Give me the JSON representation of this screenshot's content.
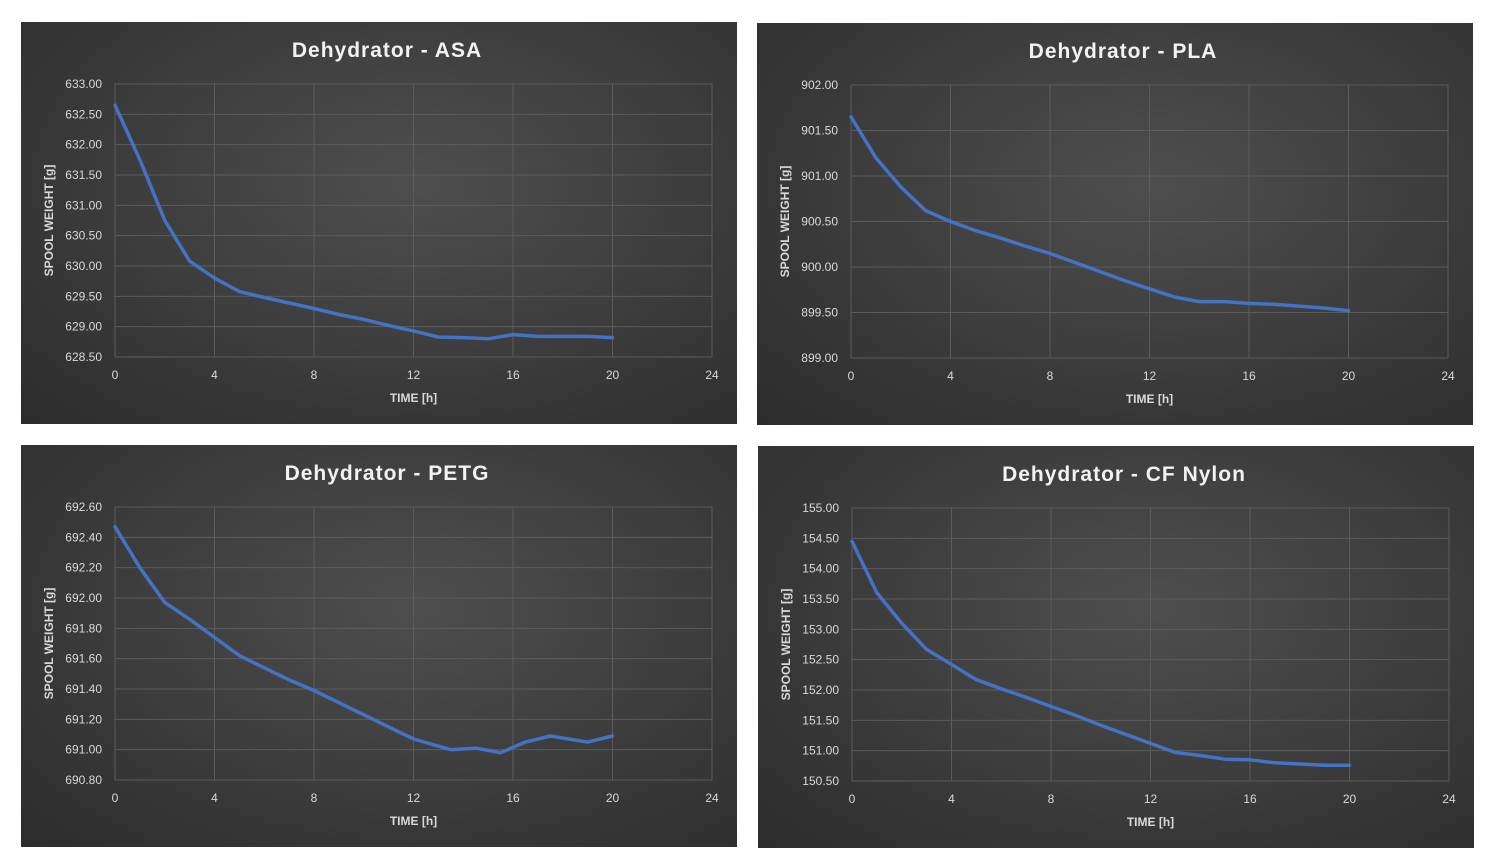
{
  "colors": {
    "series": "#4472c4",
    "panel_bg": "#3a3a3a",
    "text": "#d9d9d9"
  },
  "chart_data": [
    {
      "type": "line",
      "title": "Dehydrator - ASA",
      "xlabel": "TIME [h]",
      "ylabel": "SPOOL WEIGHT [g]",
      "xlim": [
        0,
        24
      ],
      "xticks": [
        "0",
        "4",
        "8",
        "12",
        "16",
        "20",
        "24"
      ],
      "ylim": [
        628.5,
        633.0
      ],
      "yticks": [
        "628.50",
        "629.00",
        "629.50",
        "630.00",
        "630.50",
        "631.00",
        "631.50",
        "632.00",
        "632.50",
        "633.00"
      ],
      "grid": true,
      "legend": "none",
      "series": [
        {
          "x": [
            0,
            1,
            2,
            3,
            4,
            5,
            6,
            7,
            8,
            9,
            10,
            11,
            12,
            13,
            14,
            15,
            16,
            17,
            18,
            19,
            20
          ],
          "y": [
            632.65,
            631.75,
            630.75,
            630.08,
            629.8,
            629.58,
            629.48,
            629.39,
            629.3,
            629.2,
            629.12,
            629.02,
            628.93,
            628.83,
            628.82,
            628.8,
            628.87,
            628.84,
            628.84,
            628.84,
            628.82
          ]
        }
      ]
    },
    {
      "type": "line",
      "title": "Dehydrator - PLA",
      "xlabel": "TIME [h]",
      "ylabel": "SPOOL WEIGHT [g]",
      "xlim": [
        0,
        24
      ],
      "xticks": [
        "0",
        "4",
        "8",
        "12",
        "16",
        "20",
        "24"
      ],
      "ylim": [
        899.0,
        902.0
      ],
      "yticks": [
        "899.00",
        "899.50",
        "900.00",
        "900.50",
        "901.00",
        "901.50",
        "902.00"
      ],
      "grid": true,
      "legend": "none",
      "series": [
        {
          "x": [
            0,
            1,
            2,
            3,
            4,
            5,
            6,
            7,
            8,
            9,
            10,
            11,
            12,
            13,
            14,
            15,
            16,
            17,
            18,
            19,
            20
          ],
          "y": [
            901.65,
            901.2,
            900.88,
            900.62,
            900.5,
            900.4,
            900.32,
            900.23,
            900.15,
            900.05,
            899.95,
            899.85,
            899.76,
            899.67,
            899.62,
            899.62,
            899.6,
            899.59,
            899.57,
            899.55,
            899.52
          ]
        }
      ]
    },
    {
      "type": "line",
      "title": "Dehydrator - PETG",
      "xlabel": "TIME [h]",
      "ylabel": "SPOOL WEIGHT [g]",
      "xlim": [
        0,
        24
      ],
      "xticks": [
        "0",
        "4",
        "8",
        "12",
        "16",
        "20",
        "24"
      ],
      "ylim": [
        690.8,
        692.6
      ],
      "yticks": [
        "690.80",
        "691.00",
        "691.20",
        "691.40",
        "691.60",
        "691.80",
        "692.00",
        "692.20",
        "692.40",
        "692.60"
      ],
      "grid": true,
      "legend": "none",
      "series": [
        {
          "x": [
            0,
            1,
            2,
            3,
            4,
            5,
            6,
            7,
            8,
            9,
            10,
            11,
            12,
            13.5,
            14.5,
            15.5,
            16.5,
            17.5,
            19,
            20
          ],
          "y": [
            692.47,
            692.2,
            691.97,
            691.86,
            691.74,
            691.62,
            691.54,
            691.46,
            691.39,
            691.31,
            691.23,
            691.15,
            691.07,
            691.0,
            691.01,
            690.98,
            691.05,
            691.09,
            691.05,
            691.09
          ]
        }
      ]
    },
    {
      "type": "line",
      "title": "Dehydrator - CF Nylon",
      "xlabel": "TIME [h]",
      "ylabel": "SPOOL WEIGHT [g]",
      "xlim": [
        0,
        24
      ],
      "xticks": [
        "0",
        "4",
        "8",
        "12",
        "16",
        "20",
        "24"
      ],
      "ylim": [
        150.5,
        155.0
      ],
      "yticks": [
        "150.50",
        "151.00",
        "151.50",
        "152.00",
        "152.50",
        "153.00",
        "153.50",
        "154.00",
        "154.50",
        "155.00"
      ],
      "grid": true,
      "legend": "none",
      "series": [
        {
          "x": [
            0,
            1,
            2,
            3,
            4,
            5,
            6,
            7,
            8,
            9,
            10,
            11,
            12,
            13,
            14,
            15,
            16,
            17,
            18,
            19,
            20
          ],
          "y": [
            154.45,
            153.6,
            153.1,
            152.67,
            152.42,
            152.17,
            152.02,
            151.88,
            151.73,
            151.58,
            151.42,
            151.27,
            151.12,
            150.97,
            150.92,
            150.86,
            150.85,
            150.8,
            150.78,
            150.76,
            150.76
          ]
        }
      ]
    }
  ]
}
